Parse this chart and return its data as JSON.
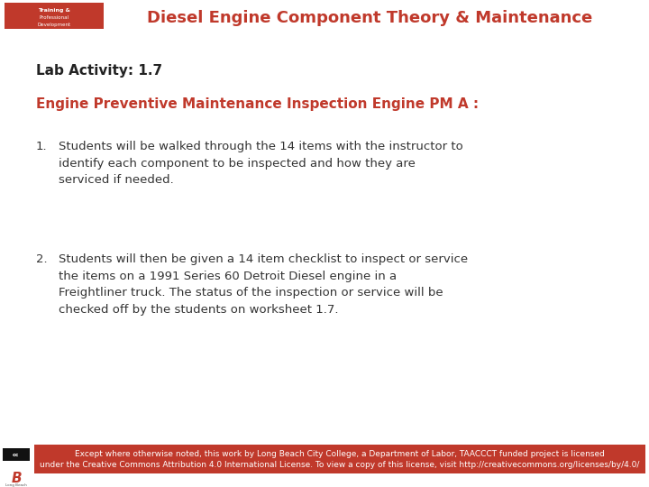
{
  "title": "Diesel Engine Component Theory & Maintenance",
  "title_color": "#C0392B",
  "title_fontsize": 13,
  "header_line_color": "#BBBBBB",
  "bg_color": "#FFFFFF",
  "lab_activity": "Lab Activity: 1.7",
  "lab_activity_fontsize": 11,
  "section_title": "Engine Preventive Maintenance Inspection Engine PM A :",
  "section_title_color": "#C0392B",
  "section_title_fontsize": 11,
  "body_color": "#333333",
  "body_fontsize": 9.5,
  "item1_text": "Students will be walked through the 14 items with the instructor to\nidentify each component to be inspected and how they are\nserviced if needed.",
  "item2_text": "Students will then be given a 14 item checklist to inspect or service\nthe items on a 1991 Series 60 Detroit Diesel engine in a\nFreightliner truck. The status of the inspection or service will be\nchecked off by the students on worksheet 1.7.",
  "footer_bg_color": "#C0392B",
  "footer_text": "Except where otherwise noted, this work by Long Beach City College, a Department of Labor, TAACCCT funded project is licensed\nunder the Creative Commons Attribution 4.0 International License. To view a copy of this license, visit http://creativecommons.org/licenses/by/4.0/",
  "footer_text_color": "#FFFFFF",
  "footer_fontsize": 6.5,
  "logo_bg": "#C0392B",
  "logo_text1": "Training &",
  "logo_text2": "Professional",
  "logo_text3": "Development"
}
